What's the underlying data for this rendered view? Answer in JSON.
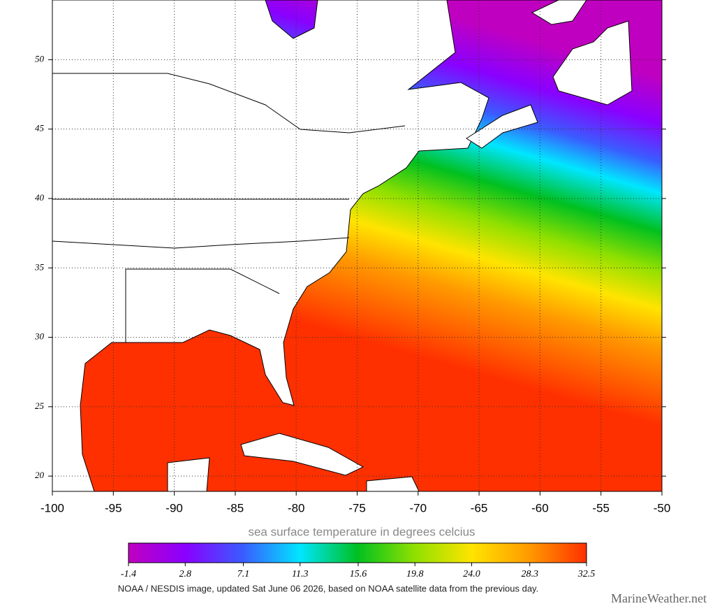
{
  "chart_data": {
    "type": "map",
    "xlim": [
      -100,
      -50
    ],
    "ylim": [
      18.9,
      54.3
    ],
    "xticks": [
      -100,
      -95,
      -90,
      -85,
      -80,
      -75,
      -70,
      -65,
      -60,
      -55,
      -50
    ],
    "yticks": [
      20,
      25,
      30,
      35,
      40,
      45,
      50
    ],
    "grid": true,
    "colorbar": {
      "title": "sea surface temperature in degrees celcius",
      "lim": [
        -1.4,
        32.5
      ],
      "ticks": [
        -1.4,
        2.8,
        7.1,
        11.3,
        15.6,
        19.8,
        {
          "value": 24,
          "label": "24.0"
        },
        28.3,
        32.5
      ],
      "colors": [
        "#c000c0",
        "#8a00ff",
        "#3a5cff",
        "#00e6ff",
        "#00c020",
        "#90e000",
        "#ffe400",
        "#ff9a00",
        "#ff3000"
      ]
    },
    "footer": "NOAA / NESDIS image, updated Sat June 06 2026, based on NOAA satellite data from the previous day.",
    "watermark": "MarineWeather.net"
  }
}
